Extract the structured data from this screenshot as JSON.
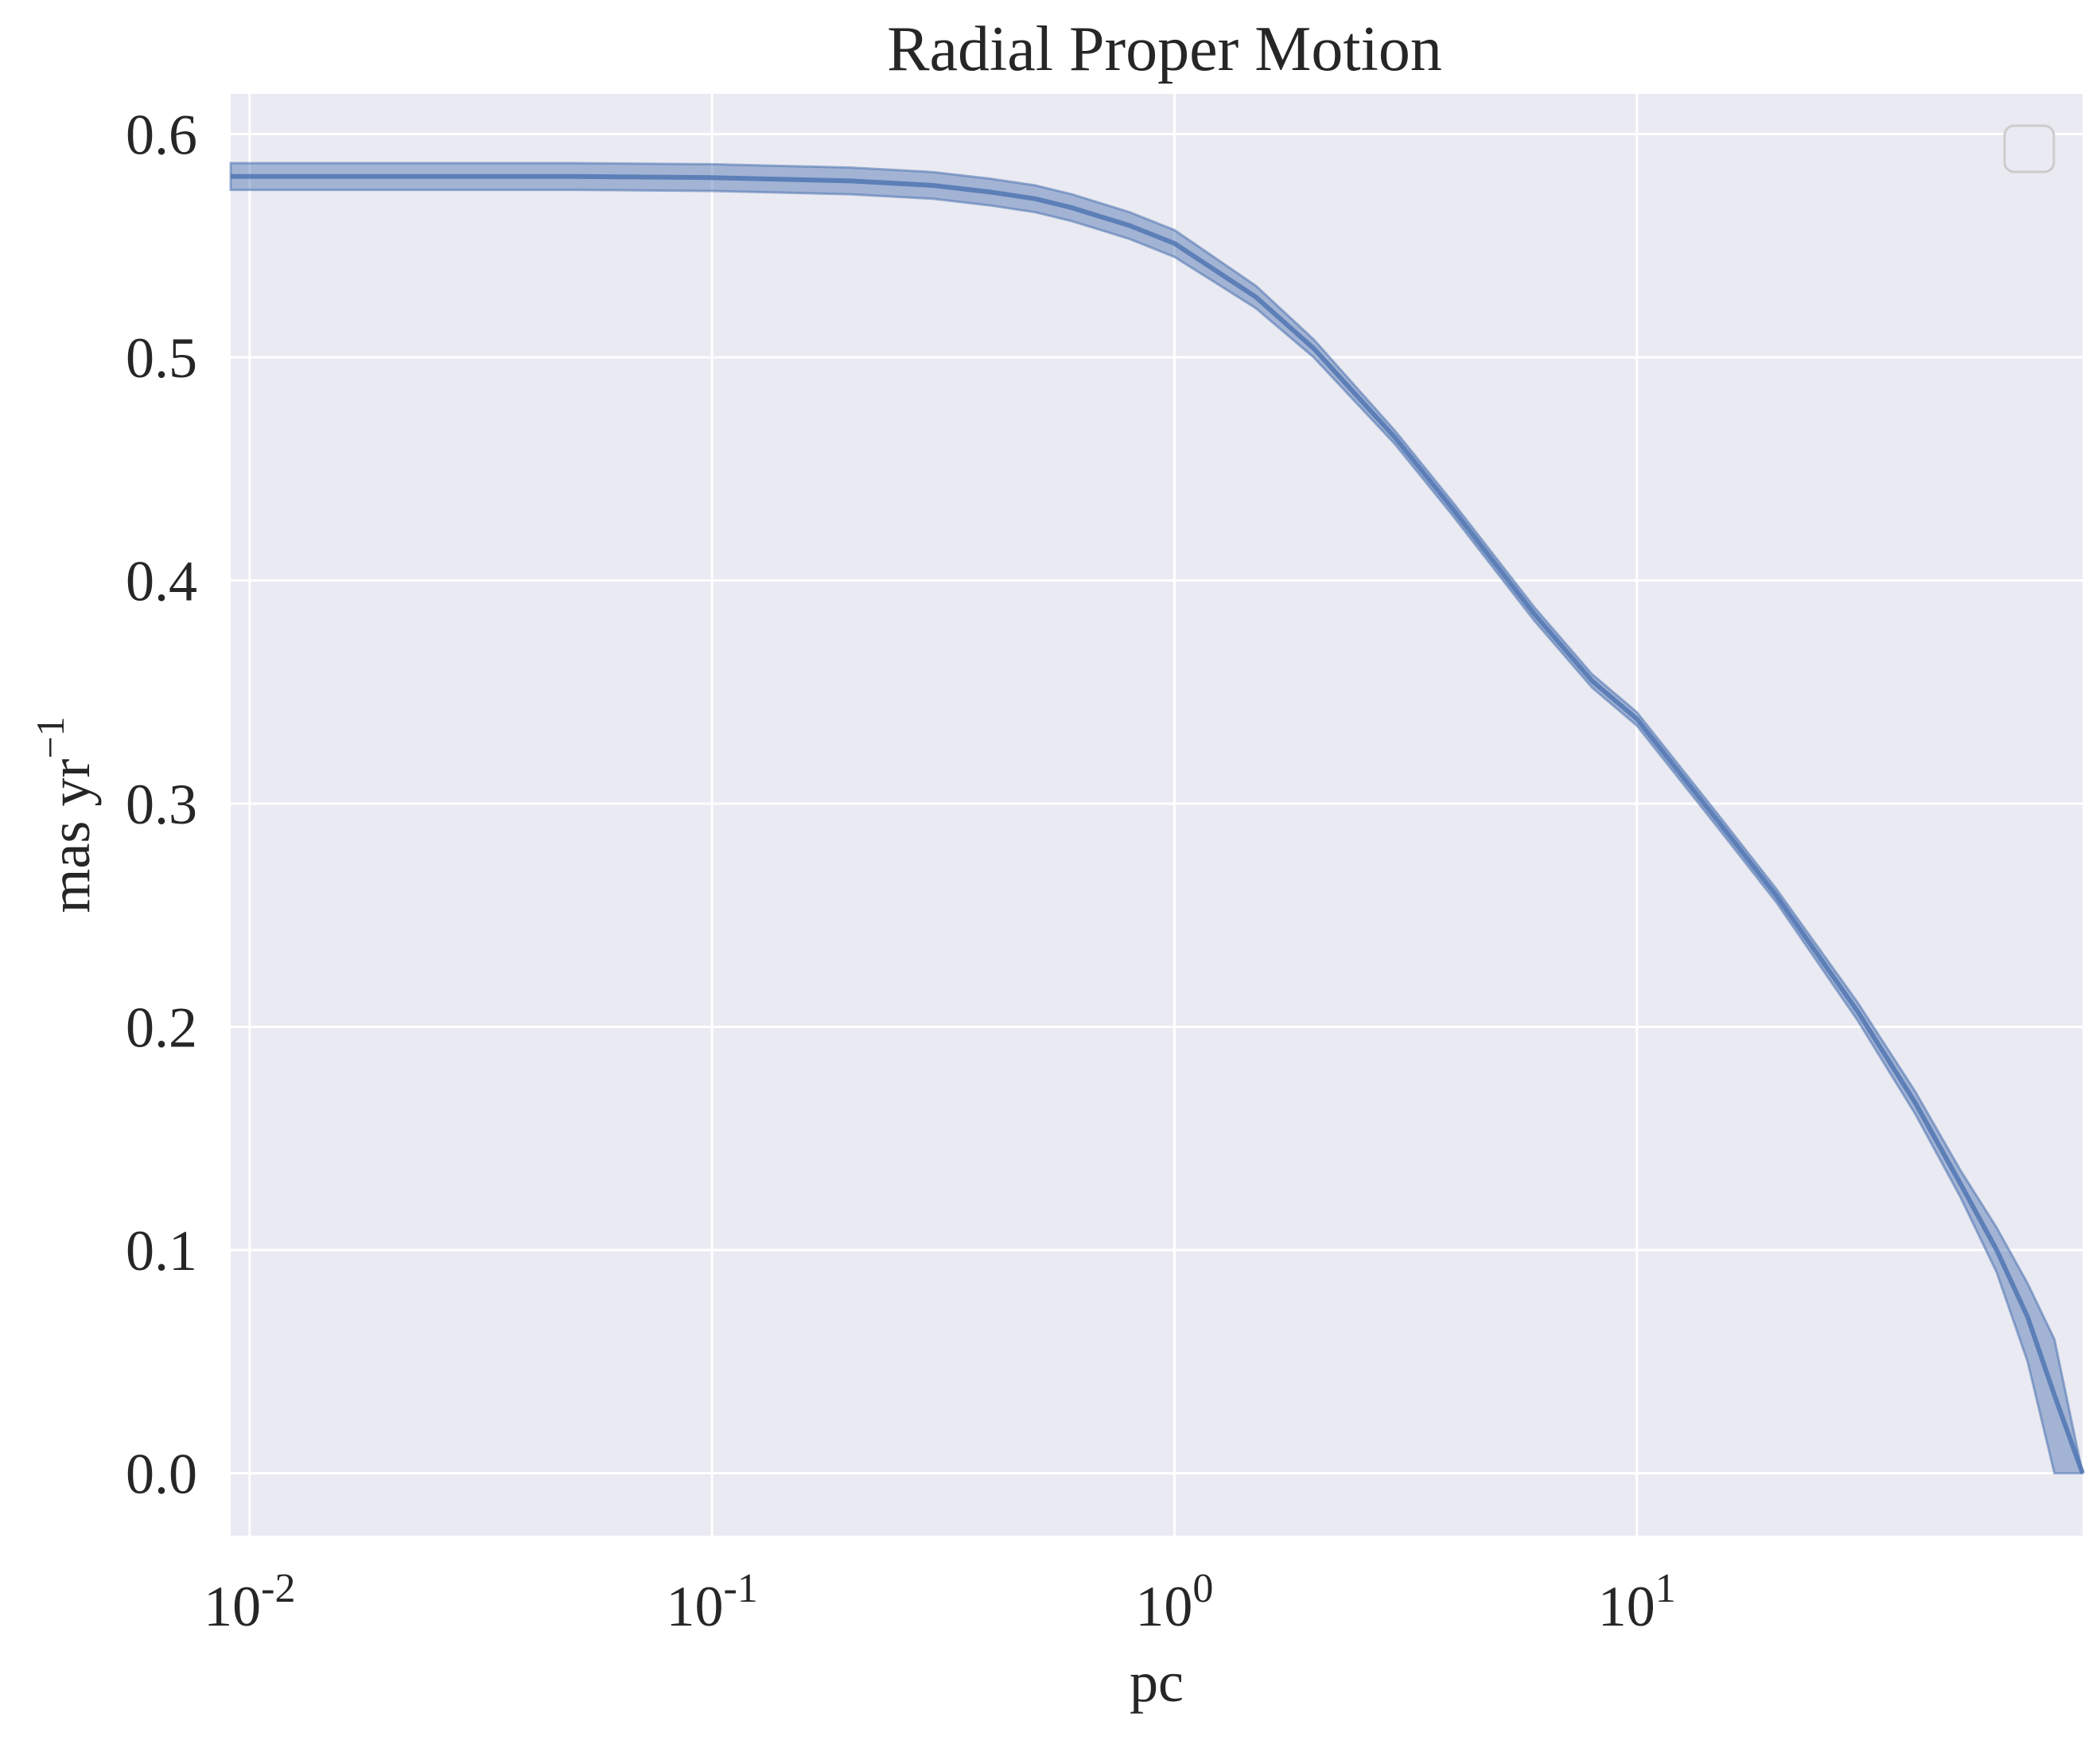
{
  "chart_data": {
    "type": "area",
    "title": "Radial Proper Motion",
    "xlabel": "pc",
    "ylabel": "mas yr",
    "ylabel_sup": "−1",
    "xscale": "log",
    "xlim": [
      0.0091,
      92
    ],
    "ylim": [
      -0.028,
      0.618
    ],
    "xticks": [
      {
        "value": 0.01,
        "base": "10",
        "exp": "-2"
      },
      {
        "value": 0.1,
        "base": "10",
        "exp": "-1"
      },
      {
        "value": 1,
        "base": "10",
        "exp": "0"
      },
      {
        "value": 10,
        "base": "10",
        "exp": "1"
      }
    ],
    "yticks": [
      {
        "value": 0.0,
        "label": "0.0"
      },
      {
        "value": 0.1,
        "label": "0.1"
      },
      {
        "value": 0.2,
        "label": "0.2"
      },
      {
        "value": 0.3,
        "label": "0.3"
      },
      {
        "value": 0.4,
        "label": "0.4"
      },
      {
        "value": 0.5,
        "label": "0.5"
      },
      {
        "value": 0.6,
        "label": "0.6"
      }
    ],
    "grid": true,
    "legend": "top-right (empty)",
    "colors": {
      "background": "#EAEAF2",
      "grid": "#FFFFFF",
      "band": "#4C72B0",
      "legend_border": "#CCCCCC"
    },
    "series": [
      {
        "x": [
          0.0091,
          0.02,
          0.05,
          0.1,
          0.2,
          0.3,
          0.4,
          0.5,
          0.6,
          0.8,
          1.0,
          1.5,
          2.0,
          3.0,
          4.0,
          6.0,
          8.0,
          10.0,
          15.0,
          20.0,
          30.0,
          40.0,
          50.0,
          60.0,
          70.0,
          80.0,
          92.0
        ],
        "median": [
          0.581,
          0.581,
          0.581,
          0.5805,
          0.579,
          0.577,
          0.574,
          0.571,
          0.567,
          0.559,
          0.551,
          0.527,
          0.504,
          0.464,
          0.432,
          0.385,
          0.355,
          0.338,
          0.292,
          0.259,
          0.207,
          0.166,
          0.13,
          0.1,
          0.07,
          0.035,
          0.0
        ],
        "lower": [
          0.575,
          0.575,
          0.575,
          0.5745,
          0.573,
          0.571,
          0.568,
          0.565,
          0.561,
          0.553,
          0.545,
          0.522,
          0.5,
          0.461,
          0.429,
          0.382,
          0.352,
          0.335,
          0.289,
          0.256,
          0.203,
          0.161,
          0.124,
          0.09,
          0.05,
          0.0,
          0.0
        ],
        "upper": [
          0.587,
          0.587,
          0.587,
          0.5865,
          0.585,
          0.583,
          0.58,
          0.577,
          0.573,
          0.565,
          0.557,
          0.532,
          0.508,
          0.467,
          0.435,
          0.388,
          0.358,
          0.341,
          0.295,
          0.262,
          0.211,
          0.171,
          0.136,
          0.11,
          0.085,
          0.06,
          0.0
        ]
      }
    ]
  }
}
